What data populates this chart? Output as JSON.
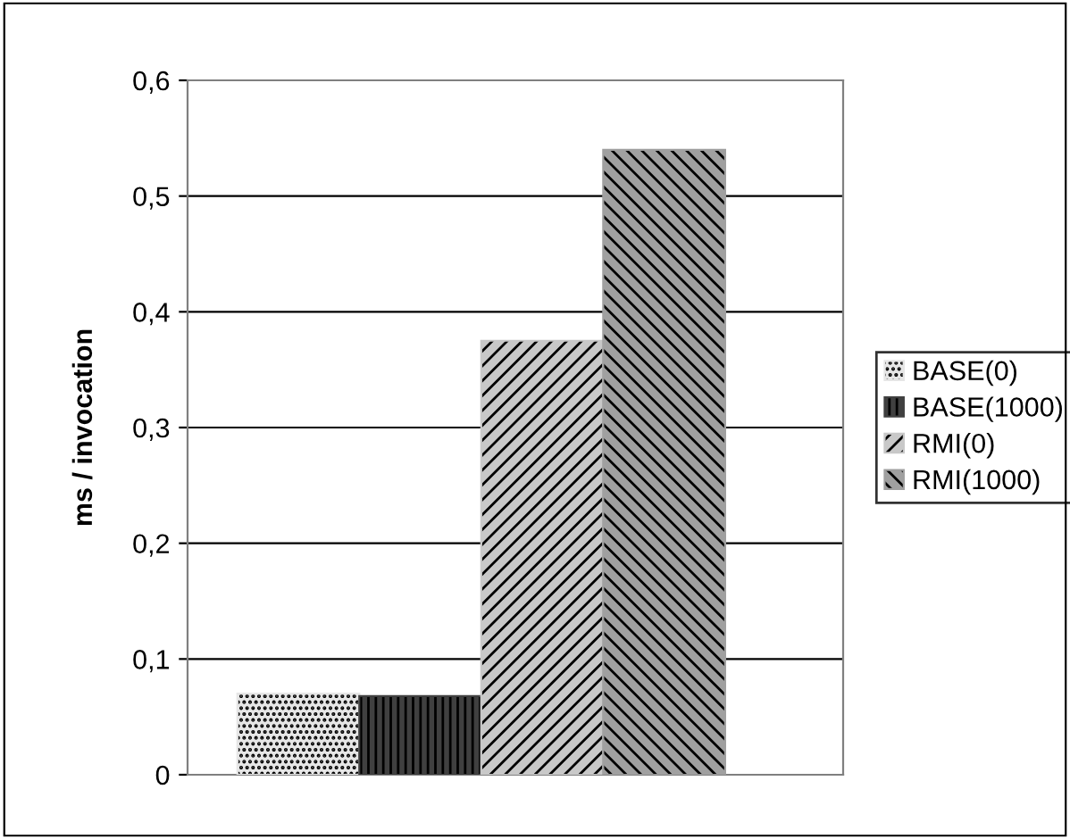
{
  "chart_data": {
    "type": "bar",
    "ylabel": "ms / invocation",
    "categories": [
      null
    ],
    "series": [
      {
        "name": "BASE(0)",
        "color": "#e6e6e6",
        "values": [
          0.07
        ]
      },
      {
        "name": "BASE(1000)",
        "color": "#404040",
        "values": [
          0.068
        ]
      },
      {
        "name": "RMI(0)",
        "color": "#c8c8c8",
        "values": [
          0.375
        ]
      },
      {
        "name": "RMI(1000)",
        "color": "#a0a0a0",
        "values": [
          0.54
        ]
      }
    ],
    "ylim": [
      0,
      0.6
    ],
    "yticks": [
      0,
      {
        "value": 0.1,
        "label": "0,1"
      },
      {
        "value": 0.2,
        "label": "0,2"
      },
      {
        "value": 0.3,
        "label": "0,3"
      },
      {
        "value": 0.4,
        "label": "0,4"
      },
      {
        "value": 0.5,
        "label": "0,5"
      },
      {
        "value": 0.6,
        "label": "0,6"
      }
    ],
    "grid": "y",
    "legend": "right"
  }
}
